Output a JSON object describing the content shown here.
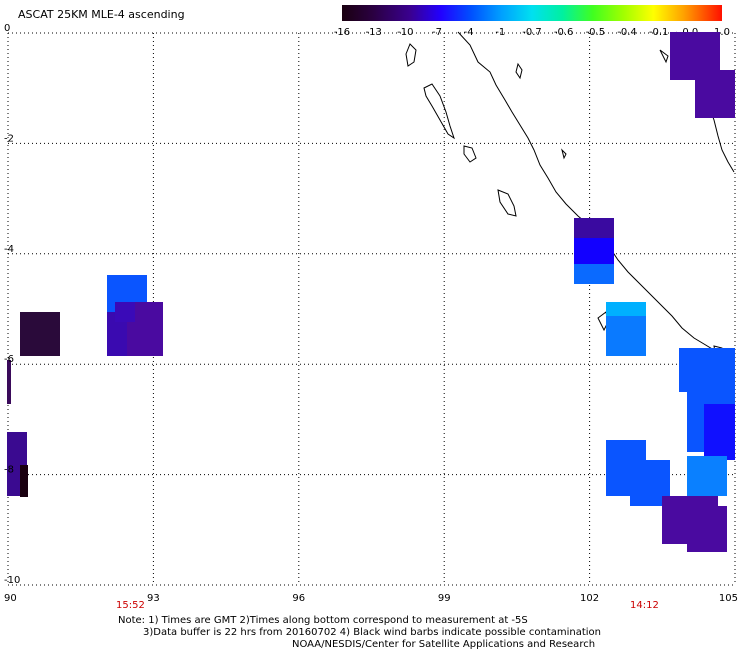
{
  "title": "ASCAT 25KM MLE-4 ascending",
  "colorbar": {
    "labels": [
      "-16",
      "-13",
      "-10",
      "-7",
      "-4",
      "-1",
      "-0.7",
      "-0.6",
      "-0.5",
      "-0.4",
      "-0.1",
      "0.0",
      "1.0"
    ]
  },
  "axes": {
    "x_ticks": [
      "90",
      "93",
      "96",
      "99",
      "102",
      "105"
    ],
    "y_ticks": [
      "0",
      "-2",
      "-4",
      "-6",
      "-8",
      "-10"
    ],
    "x_range": [
      90,
      105
    ],
    "y_range": [
      -10,
      0
    ]
  },
  "times": [
    "15:52",
    "14:12"
  ],
  "notes": {
    "line1": "Note: 1) Times are GMT 2)Times along bottom correspond to measurement at -5S",
    "line2": "3)Data buffer is 22 hrs from 20160702 4) Black wind barbs indicate possible contamination",
    "line3": "NOAA/NESDIS/Center for Satellite Applications and Research"
  }
}
